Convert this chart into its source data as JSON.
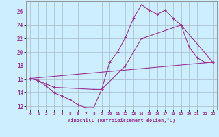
{
  "xlabel": "Windchill (Refroidissement éolien,°C)",
  "bg_color": "#cceeff",
  "line_color": "#993399",
  "grid_color": "#aabbcc",
  "xlim": [
    -0.5,
    23.5
  ],
  "ylim": [
    11.5,
    27.5
  ],
  "xticks": [
    0,
    1,
    2,
    3,
    4,
    5,
    6,
    7,
    8,
    9,
    10,
    11,
    12,
    13,
    14,
    15,
    16,
    17,
    18,
    19,
    20,
    21,
    22,
    23
  ],
  "yticks": [
    12,
    14,
    16,
    18,
    20,
    22,
    24,
    26
  ],
  "series1_x": [
    0,
    1,
    2,
    3,
    4,
    5,
    6,
    7,
    8,
    9,
    10,
    11,
    12,
    13,
    14,
    15,
    16,
    17,
    18,
    19,
    20,
    21,
    22,
    23
  ],
  "series1_y": [
    16.1,
    15.8,
    15.0,
    14.0,
    13.5,
    13.0,
    12.2,
    11.8,
    11.8,
    14.5,
    18.5,
    20.0,
    22.2,
    25.0,
    27.0,
    26.2,
    25.6,
    26.2,
    25.0,
    24.0,
    20.8,
    19.2,
    18.5,
    18.5
  ],
  "series2_x": [
    0,
    1,
    2,
    3,
    8,
    9,
    12,
    14,
    19,
    23
  ],
  "series2_y": [
    16.1,
    15.8,
    15.3,
    14.8,
    14.5,
    14.5,
    18.0,
    22.0,
    24.0,
    18.5
  ],
  "series3_x": [
    0,
    23
  ],
  "series3_y": [
    16.1,
    18.5
  ]
}
